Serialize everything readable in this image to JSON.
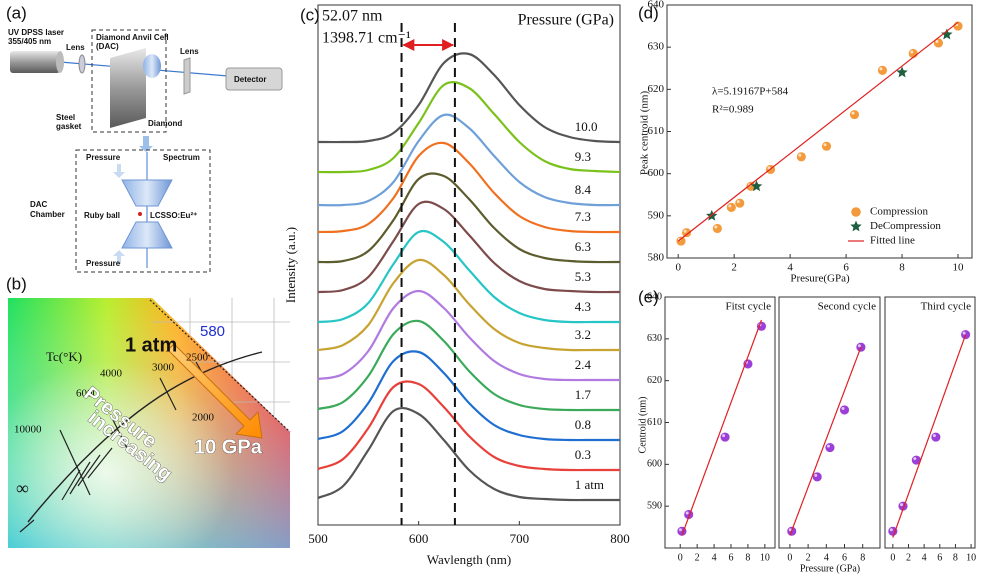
{
  "panels": {
    "a": {
      "tag": "(a)",
      "labels": [
        "UV DPSS laser",
        "355/405 nm",
        "Lens",
        "Diamond Anvil Cell",
        "(DAC)",
        "Lens",
        "Detector",
        "Steel",
        "gasket",
        "Diamond",
        "Spectrum",
        "Pressure",
        "DAC",
        "Chamber",
        "Ruby ball",
        "LCSSO:Eu²⁺",
        "Pressure"
      ]
    },
    "b": {
      "tag": "(b)",
      "labels": [
        "580",
        "1 atm",
        "Tc(°K)",
        "4000",
        "3000",
        "2500",
        "6000",
        "2000",
        "10000",
        "∞",
        "Pressure",
        "increasing",
        "10 GPa"
      ]
    }
  },
  "chart_data": [
    {
      "type": "line",
      "tag": "(c)",
      "xlabel": "Wavlength (nm)",
      "ylabel": "Intensity (a.u.)",
      "legend_title": "Pressure (GPa)",
      "annotations": [
        "52.07 nm",
        "1398.71 cm⁻¹"
      ],
      "vlines": [
        583,
        636
      ],
      "x": [
        500,
        525,
        550,
        575,
        600,
        625,
        650,
        675,
        700,
        725,
        750,
        775,
        800
      ],
      "xlim": [
        500,
        800
      ],
      "xticks": [
        500,
        600,
        700,
        800
      ],
      "ylim": [
        0,
        520
      ],
      "series": [
        {
          "name": "1 atm",
          "color": "#555555",
          "values": [
            27,
            39,
            75,
            114,
            111,
            85,
            55,
            36,
            28,
            26,
            25,
            25,
            25
          ]
        },
        {
          "name": "0.3",
          "color": "#e8403a",
          "values": [
            56,
            66,
            97,
            138,
            141,
            118,
            89,
            68,
            59,
            56,
            55,
            55,
            55
          ]
        },
        {
          "name": "0.8",
          "color": "#1f6fd1",
          "values": [
            86,
            94,
            122,
            164,
            173,
            152,
            122,
            100,
            90,
            86,
            85,
            85,
            85
          ]
        },
        {
          "name": "1.7",
          "color": "#3aaa5a",
          "values": [
            116,
            123,
            149,
            191,
            204,
            184,
            154,
            131,
            120,
            116,
            115,
            115,
            115
          ]
        },
        {
          "name": "2.4",
          "color": "#b07ae0",
          "values": [
            146,
            151,
            174,
            217,
            234,
            217,
            188,
            164,
            151,
            146,
            145,
            145,
            145
          ]
        },
        {
          "name": "3.2",
          "color": "#c7a332",
          "values": [
            175,
            180,
            200,
            242,
            265,
            250,
            221,
            196,
            182,
            177,
            175,
            175,
            175
          ]
        },
        {
          "name": "4.3",
          "color": "#27c5c5",
          "values": [
            203,
            206,
            222,
            261,
            293,
            283,
            255,
            228,
            212,
            205,
            203,
            203,
            203
          ]
        },
        {
          "name": "5.3",
          "color": "#7d4b4b",
          "values": [
            233,
            235,
            248,
            284,
            321,
            316,
            290,
            262,
            244,
            236,
            234,
            233,
            233
          ]
        },
        {
          "name": "6.3",
          "color": "#5c5c2e",
          "values": [
            263,
            264,
            274,
            305,
            346,
            349,
            326,
            297,
            276,
            267,
            264,
            263,
            263
          ]
        },
        {
          "name": "7.3",
          "color": "#f07020",
          "values": [
            293,
            294,
            301,
            327,
            369,
            382,
            362,
            332,
            309,
            298,
            294,
            293,
            293
          ]
        },
        {
          "name": "8.4",
          "color": "#6fa0d8",
          "values": [
            320,
            320,
            324,
            343,
            384,
            410,
            397,
            369,
            343,
            328,
            322,
            320,
            320
          ]
        },
        {
          "name": "9.3",
          "color": "#7ac21b",
          "values": [
            353,
            353,
            355,
            367,
            402,
            440,
            437,
            411,
            383,
            364,
            356,
            354,
            353
          ]
        },
        {
          "name": "10.0",
          "color": "#555555",
          "values": [
            383,
            383,
            384,
            392,
            420,
            462,
            471,
            450,
            420,
            398,
            388,
            384,
            383
          ]
        }
      ]
    },
    {
      "type": "scatter",
      "tag": "(d)",
      "xlabel": "Presure(GPa)",
      "ylabel": "Peak centroid (nm)",
      "annotations": [
        "λ=5.19167P+584",
        "R²=0.989"
      ],
      "xlim": [
        -0.4,
        10.5
      ],
      "xticks": [
        0,
        2,
        4,
        6,
        8,
        10
      ],
      "ylim": [
        580,
        640
      ],
      "yticks": [
        580,
        590,
        600,
        610,
        620,
        630,
        640
      ],
      "series": [
        {
          "name": "Compression",
          "color": "#f39a3c",
          "marker": "circle",
          "x": [
            0.1,
            0.3,
            1.4,
            1.9,
            2.2,
            2.6,
            3.3,
            4.4,
            5.3,
            6.3,
            7.3,
            8.4,
            9.3,
            10.0
          ],
          "values": [
            584,
            586,
            587,
            592,
            593,
            597,
            601,
            604,
            606.5,
            614,
            624.5,
            628.5,
            631,
            635
          ]
        },
        {
          "name": "DeCompression",
          "color": "#1f5e3f",
          "marker": "star",
          "x": [
            1.2,
            2.8,
            8.0,
            9.6
          ],
          "values": [
            590,
            597,
            624,
            633
          ]
        },
        {
          "name": "Fitted line",
          "color": "#e02020",
          "marker": "line",
          "x": [
            0,
            10
          ],
          "values": [
            584,
            635.9
          ]
        }
      ]
    },
    {
      "type": "scatter",
      "tag": "(e)",
      "title": "Fitst cycle",
      "ylabel": "Centroid (nm)",
      "xlim": [
        -1.8,
        11.2
      ],
      "xticks": [
        0,
        2,
        4,
        6,
        8,
        10
      ],
      "ylim": [
        580,
        640
      ],
      "yticks": [
        590,
        600,
        610,
        620,
        630,
        640
      ],
      "series": [
        {
          "color": "#9b3fd8",
          "marker": "circle",
          "x": [
            0.2,
            1,
            5.3,
            8,
            9.6
          ],
          "values": [
            584,
            588,
            606.5,
            624,
            633
          ]
        },
        {
          "color": "#e02020",
          "marker": "line",
          "x": [
            0.2,
            9.6
          ],
          "values": [
            583,
            634.5
          ]
        }
      ]
    },
    {
      "type": "scatter",
      "title": "Second cycle",
      "xlabel": "Pressure (GPa)",
      "xlim": [
        -1.2,
        9.9
      ],
      "xticks": [
        0,
        2,
        4,
        6,
        8
      ],
      "ylim": [
        580,
        640
      ],
      "series": [
        {
          "color": "#9b3fd8",
          "marker": "circle",
          "x": [
            0.2,
            3,
            4.4,
            6,
            7.8
          ],
          "values": [
            584,
            597,
            604,
            613,
            628
          ]
        },
        {
          "color": "#e02020",
          "marker": "line",
          "x": [
            0,
            7.8
          ],
          "values": [
            583,
            628
          ]
        }
      ]
    },
    {
      "type": "scatter",
      "title": "Third cycle",
      "xlim": [
        -1,
        10.5
      ],
      "xticks": [
        0,
        2,
        4,
        6,
        8,
        10
      ],
      "ylim": [
        580,
        640
      ],
      "series": [
        {
          "color": "#9b3fd8",
          "marker": "circle",
          "x": [
            0,
            1.3,
            3,
            5.5,
            9.3
          ],
          "values": [
            584,
            590,
            601,
            606.5,
            631
          ]
        },
        {
          "color": "#e02020",
          "marker": "line",
          "x": [
            0,
            9.3
          ],
          "values": [
            582.5,
            631
          ]
        }
      ]
    }
  ]
}
